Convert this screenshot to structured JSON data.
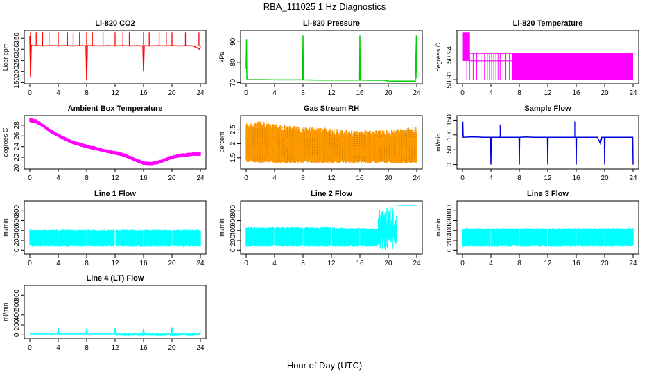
{
  "figure": {
    "title": "RBA_111025  1 Hz Diagnostics",
    "xlabel": "Hour of Day (UTC)"
  },
  "chart_data": [
    {
      "type": "line",
      "title": "Li-820 CO2",
      "ylabel": "Licor ppm",
      "color": "#ff0000",
      "xlim": [
        0,
        24
      ],
      "ylim": [
        145,
        385
      ],
      "xticks": [
        0,
        4,
        8,
        12,
        16,
        20,
        24
      ],
      "yticks": [
        150,
        200,
        250,
        300,
        350
      ],
      "series": [
        {
          "x": [
            0,
            0.1,
            0.2,
            0.3,
            1,
            2,
            3,
            4,
            5,
            6,
            7,
            7.9,
            8.0,
            8.1,
            9,
            10,
            11,
            12,
            13,
            14,
            15,
            15.9,
            16.0,
            16.1,
            17,
            18,
            19,
            20,
            21,
            22,
            23,
            23.9,
            24
          ],
          "y": [
            360,
            175,
            318,
            316,
            316,
            315,
            316,
            315,
            316,
            315,
            316,
            315,
            160,
            316,
            316,
            315,
            316,
            315,
            316,
            315,
            316,
            315,
            200,
            316,
            315,
            316,
            315,
            316,
            315,
            316,
            315,
            300,
            316
          ]
        }
      ],
      "spikes": [
        {
          "x": [
            0.1,
            0.9,
            1.8,
            2.7,
            4.0,
            5.3,
            6.1,
            7.0,
            8.0,
            8.8,
            10.3,
            12.0,
            13.1,
            14.0,
            16.0,
            16.8,
            18.2,
            19.2,
            20.0,
            21.9,
            23.8
          ],
          "y": [
            378,
            378,
            378,
            378,
            378,
            378,
            378,
            378,
            378,
            378,
            378,
            378,
            378,
            378,
            378,
            378,
            378,
            378,
            378,
            378,
            378
          ]
        }
      ]
    },
    {
      "type": "line",
      "title": "Li-820 Pressure",
      "ylabel": "kPa",
      "color": "#00cc00",
      "xlim": [
        0,
        24
      ],
      "ylim": [
        69.5,
        95.5
      ],
      "xticks": [
        0,
        4,
        8,
        12,
        16,
        20,
        24
      ],
      "yticks": [
        70,
        80,
        90
      ],
      "series": [
        {
          "x": [
            0,
            0.05,
            0.1,
            0.3,
            1,
            2,
            4,
            6,
            7.95,
            8.0,
            8.05,
            10,
            12,
            14,
            15.95,
            16.0,
            16.05,
            18,
            19.5,
            20,
            22,
            23.8,
            23.95,
            24.0
          ],
          "y": [
            77,
            91,
            72,
            71.5,
            71.5,
            71.5,
            71.4,
            71.4,
            71.4,
            93,
            71.4,
            71.3,
            71.3,
            71.3,
            71.3,
            93,
            71.3,
            71.2,
            71.2,
            70.8,
            70.8,
            70.8,
            93,
            72
          ]
        }
      ]
    },
    {
      "type": "line",
      "title": "Li-820 Temperature",
      "ylabel": "degrees C",
      "color": "#ff00ff",
      "xlim": [
        0,
        24
      ],
      "ylim": [
        50.905,
        50.97
      ],
      "xticks": [
        0,
        4,
        8,
        12,
        16,
        20,
        24
      ],
      "yticks": [
        50.91,
        50.94
      ],
      "band_high": {
        "x": [
          0.1,
          1.05
        ],
        "y": [
          50.933,
          50.968
        ]
      },
      "band_mid": {
        "x": [
          1.05,
          24
        ],
        "y": [
          50.933,
          50.942
        ]
      },
      "drops": {
        "x": [
          0.6,
          1.0,
          1.5,
          2.0,
          2.6,
          3.1,
          3.5,
          3.8,
          4.1,
          4.4,
          4.7,
          5.0,
          5.3,
          5.7,
          6.1,
          6.6,
          7.0
        ],
        "y": [
          50.91,
          50.91,
          50.91,
          50.91,
          50.91,
          50.91,
          50.91,
          50.91,
          50.91,
          50.91,
          50.91,
          50.91,
          50.91,
          50.91,
          50.91,
          50.91,
          50.91
        ]
      },
      "dense_from": 7.0
    },
    {
      "type": "area",
      "title": "Ambient Box Temperature",
      "ylabel": "degrees C",
      "color": "#ff00ff",
      "xlim": [
        0,
        24
      ],
      "ylim": [
        19.8,
        29.8
      ],
      "xticks": [
        0,
        4,
        8,
        12,
        16,
        20,
        24
      ],
      "yticks": [
        20,
        22,
        24,
        26,
        28
      ],
      "series": [
        {
          "name": "upper",
          "x": [
            0,
            1,
            2,
            3,
            4,
            5,
            6,
            7,
            8,
            9,
            10,
            11,
            12,
            13,
            14,
            15,
            16,
            17,
            18,
            19,
            20,
            21,
            22,
            23,
            24
          ],
          "y": [
            29.4,
            29.1,
            28.2,
            27.2,
            26.5,
            25.8,
            25.2,
            24.8,
            24.4,
            24.1,
            23.8,
            23.5,
            23.2,
            22.9,
            22.4,
            21.8,
            21.3,
            21.2,
            21.4,
            21.9,
            22.4,
            22.7,
            22.8,
            23.0,
            23.0
          ]
        },
        {
          "name": "lower",
          "x": [
            0,
            1,
            2,
            3,
            4,
            5,
            6,
            7,
            8,
            9,
            10,
            11,
            12,
            13,
            14,
            15,
            16,
            17,
            18,
            19,
            20,
            21,
            22,
            23,
            24
          ],
          "y": [
            28.6,
            28.3,
            27.5,
            26.5,
            25.8,
            25.1,
            24.5,
            24.1,
            23.7,
            23.4,
            23.1,
            22.8,
            22.5,
            22.2,
            21.7,
            21.1,
            20.6,
            20.5,
            20.7,
            21.2,
            21.7,
            22.0,
            22.1,
            22.3,
            22.3
          ]
        }
      ]
    },
    {
      "type": "area",
      "title": "Gas Stream RH",
      "ylabel": "percent",
      "color": "#ff9900",
      "xlim": [
        0,
        24
      ],
      "ylim": [
        1.1,
        3.0
      ],
      "xticks": [
        0,
        4,
        8,
        12,
        16,
        20,
        24
      ],
      "yticks": [
        1.5,
        2.0,
        2.5
      ],
      "series": [
        {
          "name": "upper",
          "x": [
            0,
            2,
            4,
            6,
            8,
            10,
            12,
            14,
            16,
            18,
            20,
            22,
            24
          ],
          "y": [
            2.75,
            2.8,
            2.72,
            2.65,
            2.62,
            2.6,
            2.55,
            2.5,
            2.48,
            2.5,
            2.52,
            2.55,
            2.6
          ]
        },
        {
          "name": "lower",
          "x": [
            0,
            2,
            4,
            6,
            8,
            10,
            12,
            14,
            16,
            18,
            20,
            22,
            24
          ],
          "y": [
            1.35,
            1.32,
            1.3,
            1.3,
            1.3,
            1.3,
            1.3,
            1.3,
            1.3,
            1.3,
            1.3,
            1.3,
            1.3
          ]
        }
      ]
    },
    {
      "type": "line",
      "title": "Sample Flow",
      "ylabel": "ml/min",
      "color": "#0000dd",
      "xlim": [
        0,
        24
      ],
      "ylim": [
        -15,
        165
      ],
      "xticks": [
        0,
        4,
        8,
        12,
        16,
        20,
        24
      ],
      "yticks": [
        0,
        50,
        100,
        150
      ],
      "series": [
        {
          "x": [
            0,
            0.05,
            0.1,
            1,
            2,
            3,
            3.95,
            4.0,
            4.05,
            5,
            6,
            7,
            7.95,
            8.0,
            8.05,
            9,
            10,
            11,
            11.95,
            12.0,
            12.05,
            13,
            14,
            15,
            15.95,
            16.0,
            16.05,
            17,
            18,
            19,
            19.4,
            19.6,
            19.95,
            20.0,
            20.05,
            21,
            22,
            23,
            23.95,
            24.0
          ],
          "y": [
            95,
            145,
            92,
            93,
            93,
            92,
            92,
            0,
            92,
            92,
            92,
            92,
            92,
            0,
            92,
            93,
            92,
            92,
            92,
            0,
            92,
            92,
            92,
            92,
            92,
            0,
            92,
            92,
            92,
            92,
            70,
            92,
            92,
            0,
            92,
            92,
            92,
            92,
            92,
            0
          ]
        }
      ],
      "spikes": [
        {
          "x": [
            5.3,
            15.8
          ],
          "y": [
            135,
            145
          ]
        }
      ]
    },
    {
      "type": "area",
      "title": "Line 1 Flow",
      "ylabel": "ml/min",
      "color": "#00ffff",
      "xlim": [
        0,
        24
      ],
      "ylim": [
        -80,
        1000
      ],
      "xticks": [
        0,
        4,
        8,
        12,
        16,
        20,
        24
      ],
      "yticks": [
        0,
        200,
        400,
        600,
        800
      ],
      "series": [
        {
          "name": "upper",
          "x": [
            0,
            24
          ],
          "y": [
            420,
            420
          ]
        },
        {
          "name": "lower",
          "x": [
            0,
            24
          ],
          "y": [
            80,
            80
          ]
        }
      ],
      "gaps": [
        4,
        8,
        12,
        16,
        20
      ]
    },
    {
      "type": "area",
      "title": "Line 2 Flow",
      "ylabel": "ml/min",
      "color": "#00ffff",
      "xlim": [
        0,
        24
      ],
      "ylim": [
        -80,
        1000
      ],
      "xticks": [
        0,
        4,
        8,
        12,
        16,
        20,
        24
      ],
      "yticks": [
        0,
        200,
        400,
        600,
        800
      ],
      "series": [
        {
          "name": "upper",
          "x": [
            0,
            12,
            12.5,
            18.5
          ],
          "y": [
            470,
            470,
            460,
            450
          ]
        },
        {
          "name": "lower",
          "x": [
            0,
            12,
            12.5,
            18.5
          ],
          "y": [
            80,
            80,
            80,
            80
          ]
        }
      ],
      "gaps": [
        4,
        8,
        12,
        16
      ],
      "noisy": {
        "x": [
          18.6,
          21.2
        ],
        "y": [
          -20,
          900
        ]
      },
      "tail": {
        "x": [
          21.2,
          24
        ],
        "y": [
          900,
          900
        ]
      }
    },
    {
      "type": "area",
      "title": "Line 3 Flow",
      "ylabel": "ml/min",
      "color": "#00ffff",
      "xlim": [
        0,
        24
      ],
      "ylim": [
        -80,
        1000
      ],
      "xticks": [
        0,
        4,
        8,
        12,
        16,
        20,
        24
      ],
      "yticks": [
        0,
        200,
        400,
        600,
        800
      ],
      "series": [
        {
          "name": "upper",
          "x": [
            0,
            24
          ],
          "y": [
            450,
            450
          ]
        },
        {
          "name": "lower",
          "x": [
            0,
            24
          ],
          "y": [
            80,
            80
          ]
        }
      ],
      "gaps": [
        4,
        8,
        12,
        16,
        20
      ]
    },
    {
      "type": "line",
      "title": "Line 4 (LT) Flow",
      "ylabel": "ml/min",
      "color": "#00ffff",
      "xlim": [
        0,
        24
      ],
      "ylim": [
        -80,
        1000
      ],
      "xticks": [
        0,
        4,
        8,
        12,
        16,
        20,
        24
      ],
      "yticks": [
        0,
        200,
        400,
        600,
        800
      ],
      "series": [
        {
          "x": [
            0,
            2,
            3.9,
            4.0,
            4.1,
            6,
            7.9,
            8.0,
            8.1,
            10,
            11.9,
            12.0,
            12.1,
            14,
            15.9,
            16.0,
            16.1,
            18,
            19.9,
            20.0,
            20.1,
            22,
            23.9,
            24.0
          ],
          "y": [
            20,
            20,
            20,
            150,
            20,
            20,
            20,
            120,
            20,
            20,
            20,
            140,
            20,
            20,
            20,
            120,
            20,
            20,
            20,
            150,
            20,
            20,
            20,
            80
          ]
        }
      ],
      "noise": {
        "x": [
          12.1,
          24
        ],
        "y": [
          -30,
          20
        ]
      }
    }
  ]
}
